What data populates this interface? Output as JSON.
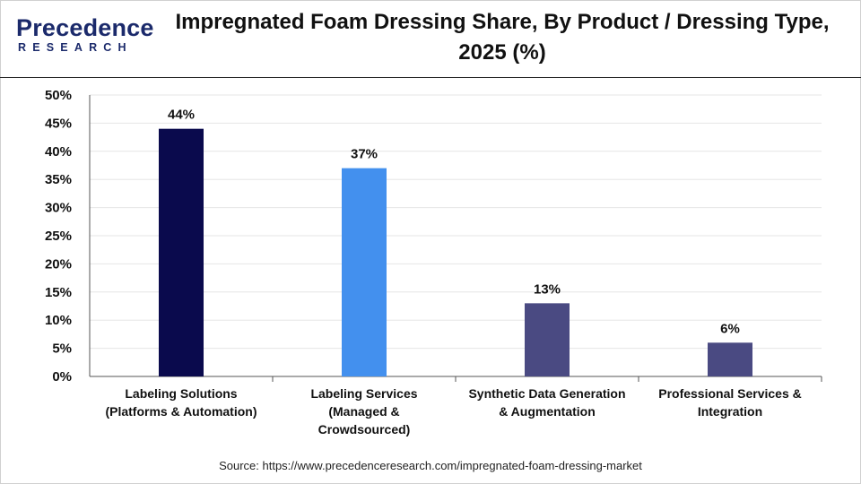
{
  "logo": {
    "word": "Precedence",
    "sub": "RESEARCH"
  },
  "title": "Impregnated Foam Dressing Share, By Product / Dressing Type, 2025 (%)",
  "source": "Source: https://www.precedenceresearch.com/impregnated-foam-dressing-market",
  "chart_data": {
    "type": "bar",
    "title": "Impregnated Foam Dressing Share, By Product / Dressing Type, 2025 (%)",
    "categories": [
      [
        "Labeling Solutions",
        "(Platforms & Automation)"
      ],
      [
        "Labeling Services",
        "(Managed &",
        "Crowdsourced)"
      ],
      [
        "Synthetic Data Generation",
        "& Augmentation"
      ],
      [
        "Professional Services &",
        "Integration"
      ]
    ],
    "values": [
      44,
      37,
      13,
      6
    ],
    "value_labels": [
      "44%",
      "37%",
      "13%",
      "6%"
    ],
    "bar_colors": [
      "#0a0a4d",
      "#4390ee",
      "#4a4a82",
      "#4a4a82"
    ],
    "ylim": [
      0,
      50
    ],
    "yticks": [
      0,
      5,
      10,
      15,
      20,
      25,
      30,
      35,
      40,
      45,
      50
    ],
    "ytick_labels": [
      "0%",
      "5%",
      "10%",
      "15%",
      "20%",
      "25%",
      "30%",
      "35%",
      "40%",
      "45%",
      "50%"
    ],
    "grid": true,
    "xlabel": "",
    "ylabel": ""
  }
}
